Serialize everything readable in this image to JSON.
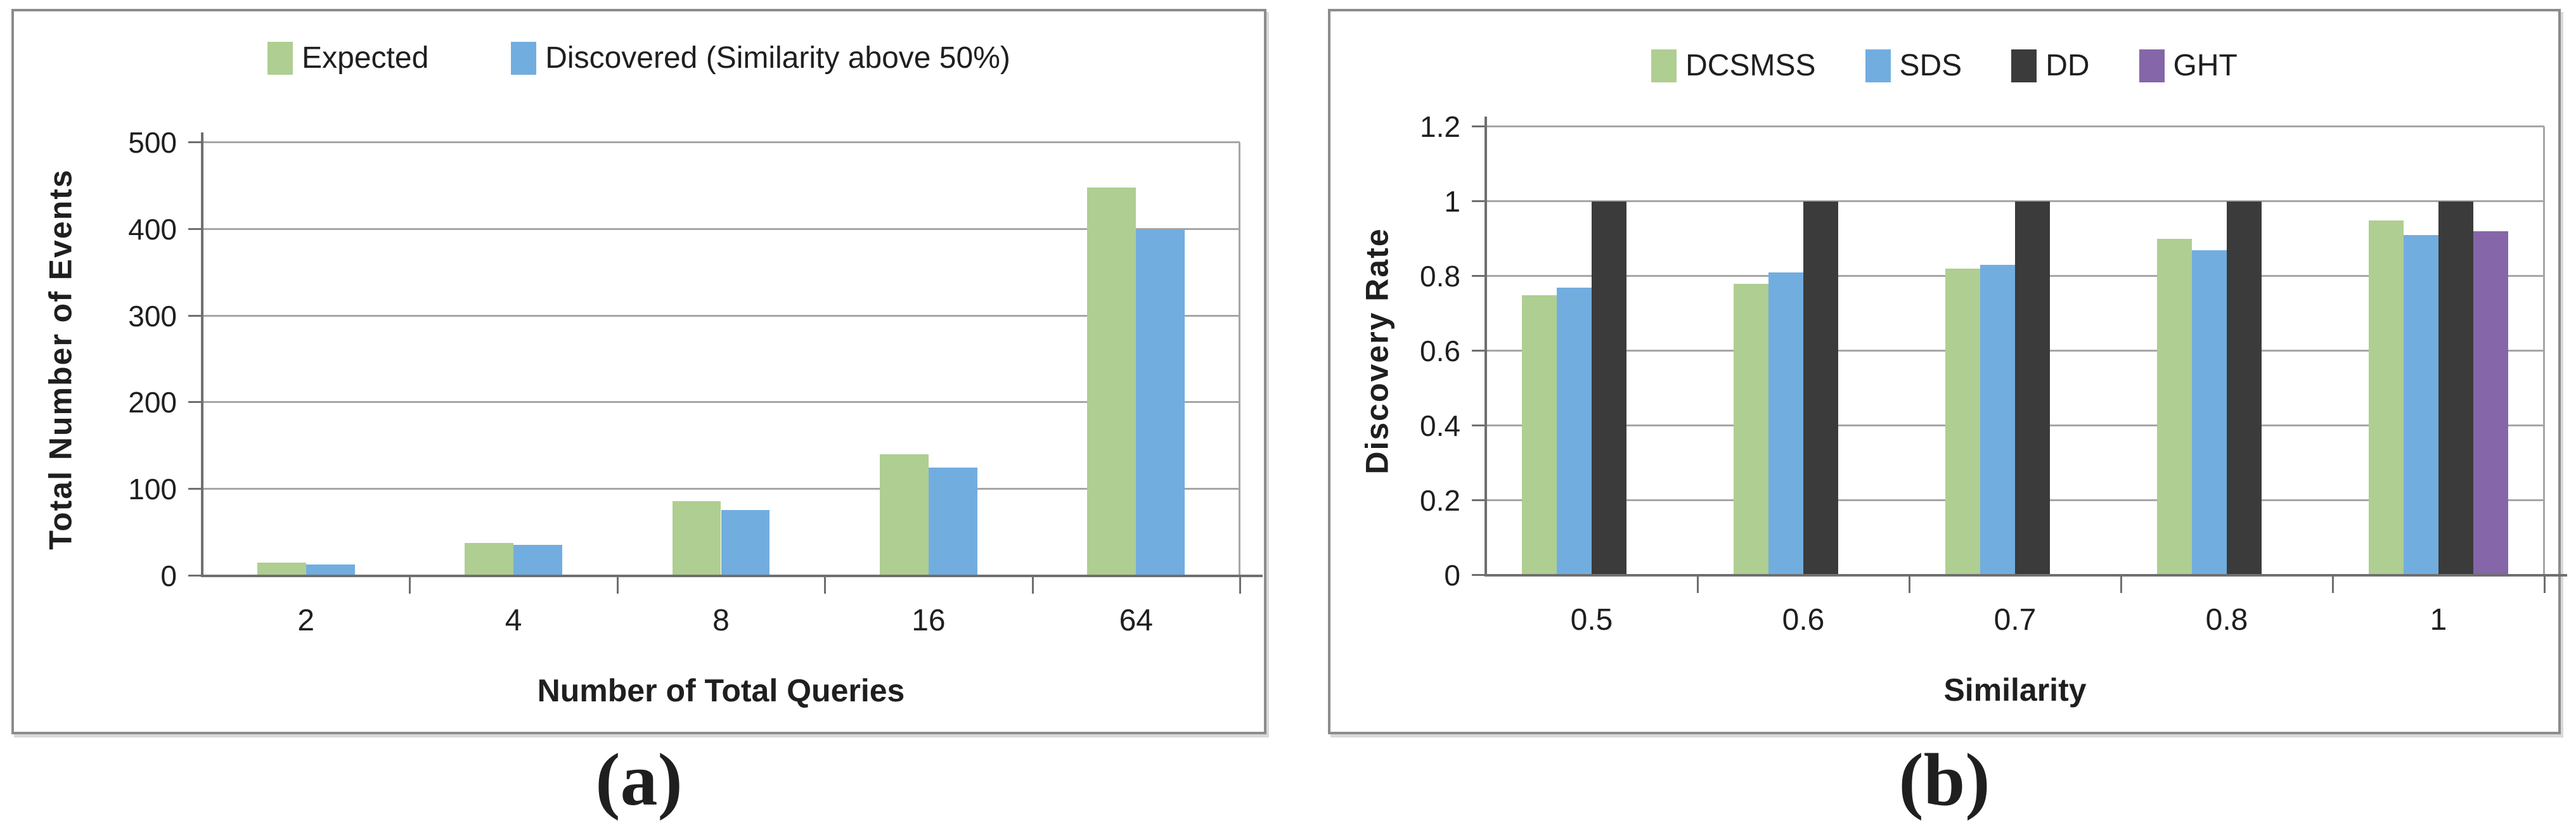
{
  "captions": {
    "a": "(a)",
    "b": "(b)"
  },
  "style": {
    "grid_color": "#a6a6a6",
    "axis_color": "#6f6f6f",
    "panel_border": "#8c8c8c",
    "text_color": "#1f1f1f"
  },
  "chart_data": [
    {
      "type": "bar",
      "panel": "a",
      "categories": [
        "2",
        "4",
        "8",
        "16",
        "64"
      ],
      "series": [
        {
          "name": "Expected",
          "color": "#AFCE91",
          "values": [
            15,
            38,
            86,
            140,
            448
          ]
        },
        {
          "name": "Discovered (Similarity above 50%)",
          "color": "#72ADE0",
          "values": [
            13,
            36,
            76,
            125,
            400
          ]
        }
      ],
      "xlabel": "Number of Total Queries",
      "ylabel": "Total Number of Events",
      "ylim": [
        0,
        500
      ],
      "yticks": [
        0,
        100,
        200,
        300,
        400,
        500
      ],
      "ytick_labels": [
        "0",
        "100",
        "200",
        "300",
        "400",
        "500"
      ],
      "grid": true,
      "legend_position": "top"
    },
    {
      "type": "bar",
      "panel": "b",
      "categories": [
        "0.5",
        "0.6",
        "0.7",
        "0.8",
        "1"
      ],
      "series": [
        {
          "name": "DCSMSS",
          "color": "#AFCE91",
          "values": [
            0.75,
            0.78,
            0.82,
            0.9,
            0.95
          ]
        },
        {
          "name": "SDS",
          "color": "#72ADE0",
          "values": [
            0.77,
            0.81,
            0.83,
            0.87,
            0.91
          ]
        },
        {
          "name": "DD",
          "color": "#3B3B3B",
          "values": [
            1,
            1,
            1,
            1,
            1
          ]
        },
        {
          "name": "GHT",
          "color": "#8566A8",
          "values": [
            0,
            0,
            0,
            0,
            0.92
          ]
        }
      ],
      "xlabel": "Similarity",
      "ylabel": "Discovery Rate",
      "ylim": [
        0,
        1.2
      ],
      "yticks": [
        0,
        0.2,
        0.4,
        0.6,
        0.8,
        1,
        1.2
      ],
      "ytick_labels": [
        "0",
        "0.2",
        "0.4",
        "0.6",
        "0.8",
        "1",
        "1.2"
      ],
      "grid": true,
      "legend_position": "top"
    }
  ]
}
